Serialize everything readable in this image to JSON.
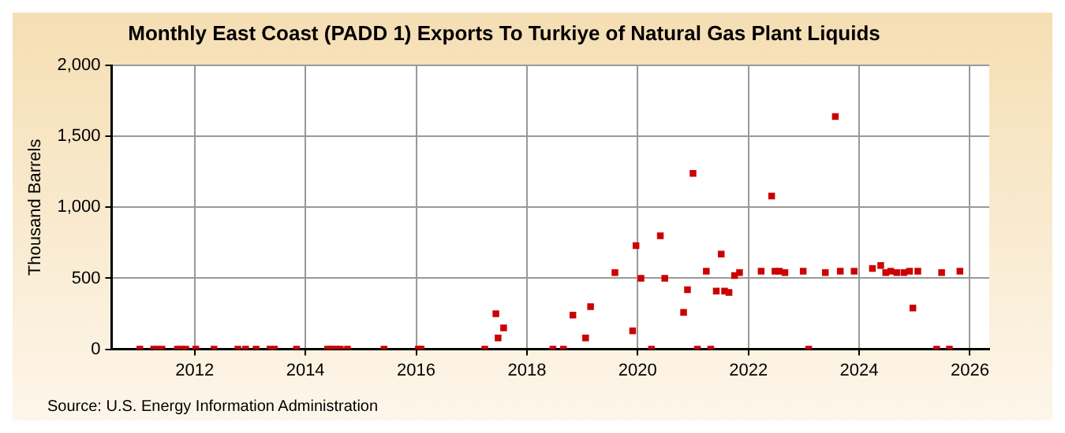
{
  "chart_data": {
    "type": "scatter",
    "title": "Monthly East Coast (PADD 1) Exports To Turkiye of Natural Gas Plant Liquids",
    "ylabel": "Thousand Barrels",
    "annotations": [
      "Source: U.S. Energy Information Administration"
    ],
    "series": [
      {
        "color": "#cc0000",
        "x": [
          2011.01,
          2011.26,
          2011.33,
          2011.41,
          2011.69,
          2011.76,
          2011.84,
          2012.02,
          2012.35,
          2012.78,
          2012.92,
          2013.11,
          2013.36,
          2013.44,
          2013.84,
          2014.4,
          2014.47,
          2014.55,
          2014.63,
          2014.76,
          2015.42,
          2016.04,
          2016.09,
          2017.24,
          2017.44,
          2017.48,
          2017.58,
          2018.47,
          2018.66,
          2018.83,
          2019.06,
          2019.15,
          2019.59,
          2019.91,
          2019.97,
          2020.06,
          2020.25,
          2020.41,
          2020.49,
          2020.83,
          2020.9,
          2021.0,
          2021.08,
          2021.24,
          2021.32,
          2021.42,
          2021.51,
          2021.57,
          2021.65,
          2021.75,
          2021.84,
          2022.23,
          2022.42,
          2022.48,
          2022.56,
          2022.66,
          2022.99,
          2023.09,
          2023.39,
          2023.57,
          2023.66,
          2023.91,
          2024.24,
          2024.39,
          2024.48,
          2024.57,
          2024.68,
          2024.81,
          2024.91,
          2024.97,
          2025.06,
          2025.4,
          2025.49,
          2025.63,
          2025.82
        ],
        "values": [
          0,
          0,
          0,
          0,
          0,
          0,
          0,
          0,
          0,
          0,
          0,
          0,
          0,
          0,
          0,
          0,
          0,
          0,
          0,
          0,
          0,
          0,
          0,
          0,
          250,
          80,
          150,
          0,
          0,
          240,
          80,
          300,
          540,
          130,
          730,
          500,
          0,
          800,
          500,
          260,
          420,
          1240,
          0,
          550,
          0,
          410,
          670,
          410,
          400,
          520,
          540,
          550,
          1080,
          550,
          550,
          540,
          550,
          0,
          540,
          1640,
          550,
          550,
          570,
          590,
          540,
          550,
          540,
          540,
          550,
          290,
          550,
          0,
          540,
          0,
          550
        ]
      }
    ],
    "xlim": [
      2010.5,
      2026.35
    ],
    "xticks": [
      2012,
      2014,
      2016,
      2018,
      2020,
      2022,
      2024,
      2026
    ],
    "ylim": [
      0,
      2000
    ],
    "yticks": [
      0,
      500,
      {
        "value": 1000,
        "label": "1,000"
      },
      {
        "value": 1500,
        "label": "1,500"
      },
      {
        "value": 2000,
        "label": "2,000"
      }
    ],
    "grid": true,
    "marker": "square",
    "legend": false
  }
}
